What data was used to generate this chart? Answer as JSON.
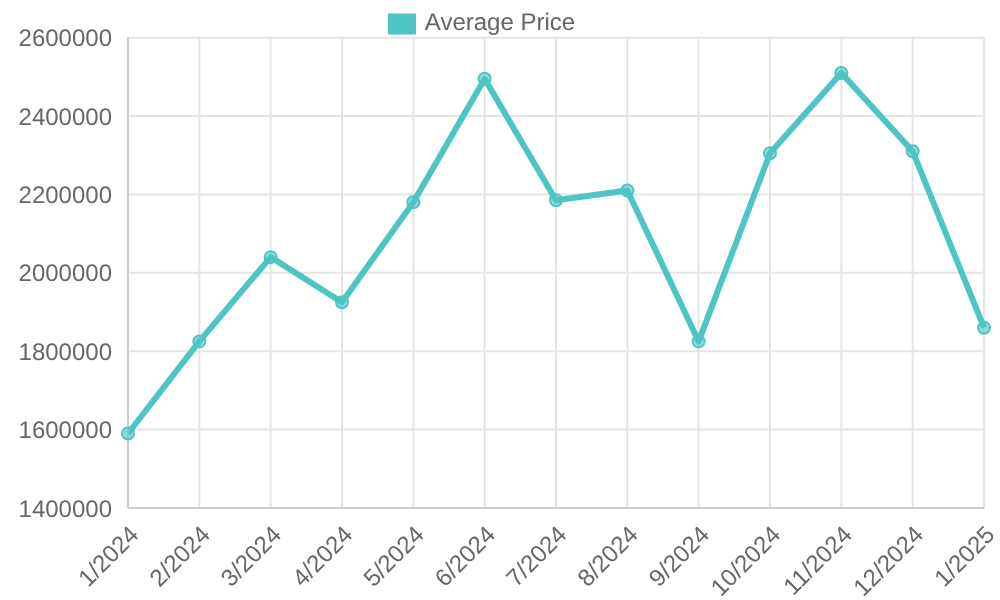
{
  "chart_data": {
    "type": "line",
    "categories": [
      "1/2024",
      "2/2024",
      "3/2024",
      "4/2024",
      "5/2024",
      "6/2024",
      "7/2024",
      "8/2024",
      "9/2024",
      "10/2024",
      "11/2024",
      "12/2024",
      "1/2025"
    ],
    "series": [
      {
        "name": "Average Price",
        "color": "#4fc4c4",
        "values": [
          1590000,
          1825000,
          2040000,
          1925000,
          2180000,
          2495000,
          2185000,
          2210000,
          1825000,
          2305000,
          2510000,
          2310000,
          1860000
        ]
      }
    ],
    "ylim": [
      1400000,
      2600000
    ],
    "yticks": [
      1400000,
      1600000,
      1800000,
      2000000,
      2200000,
      2400000,
      2600000
    ],
    "grid": true,
    "legend": "top",
    "marker": "circle",
    "line_style": "solid"
  }
}
